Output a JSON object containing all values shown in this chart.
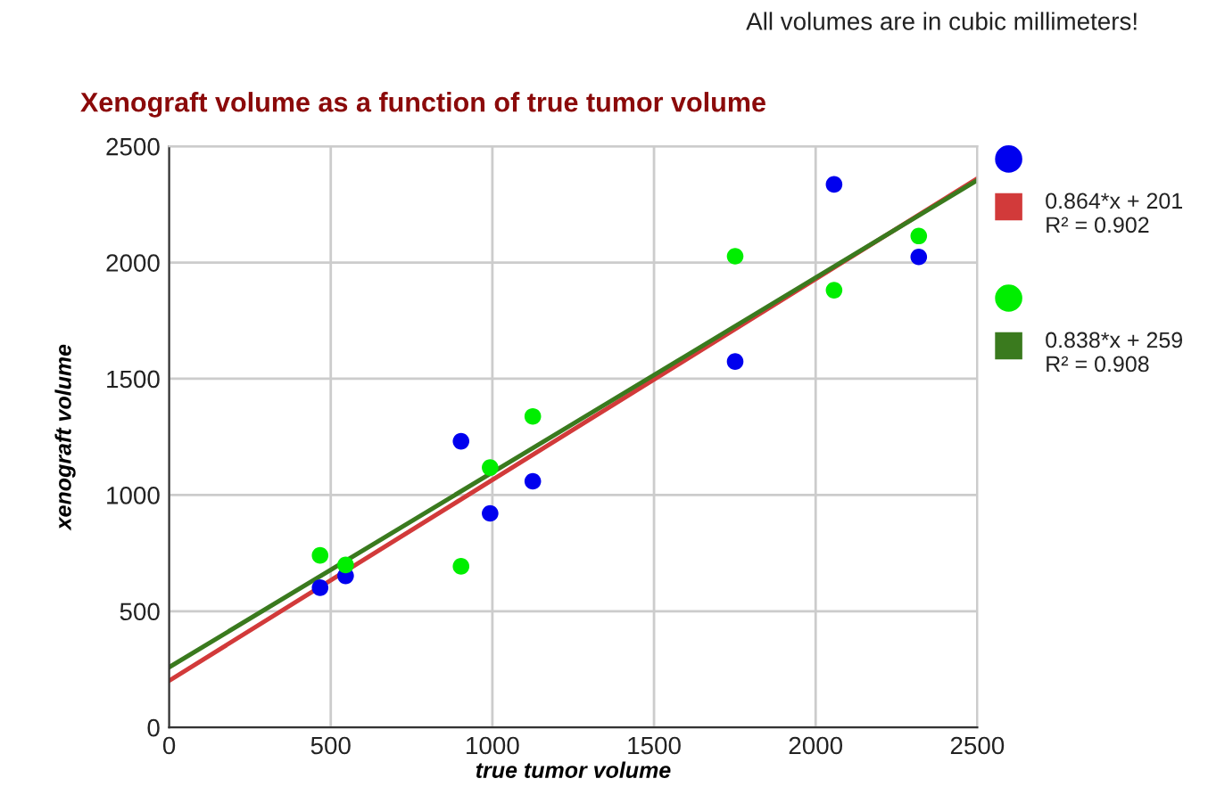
{
  "chart_data": {
    "type": "scatter",
    "title": "Xenograft volume as a function of true tumor volume",
    "xlabel": "true tumor volume",
    "ylabel": "xenograft volume",
    "annotations": [
      "All volumes are in cubic millimeters!"
    ],
    "xlim": [
      0,
      2500
    ],
    "xticks": [
      0,
      500,
      1000,
      1500,
      2000,
      2500
    ],
    "ylim": [
      0,
      2500
    ],
    "yticks": [
      0,
      500,
      1000,
      1500,
      2000,
      2500
    ],
    "grid": true,
    "legend": "right",
    "series": [
      {
        "marker": "circle",
        "color": "#0000ee",
        "x": [
          467,
          546,
          903,
          993,
          1125,
          1751,
          2057,
          2319
        ],
        "values": [
          601,
          652,
          1231,
          921,
          1059,
          1574,
          2336,
          2024
        ]
      },
      {
        "type": "line",
        "name": "0.864*x + 201 R² = 0.902",
        "color": "#d23a3a",
        "marker": "none",
        "x": [
          0,
          2500
        ],
        "values": [
          201,
          2361
        ]
      },
      {
        "marker": "circle",
        "color": "#00ee00",
        "x": [
          467,
          546,
          903,
          993,
          1125,
          1751,
          2057,
          2319
        ],
        "values": [
          740,
          699,
          693,
          1118,
          1338,
          2027,
          1881,
          2114
        ]
      },
      {
        "type": "line",
        "name": "0.838*x + 259 R² = 0.908",
        "color": "#3a7a1e",
        "marker": "none",
        "x": [
          0,
          2500
        ],
        "values": [
          259,
          2354
        ]
      }
    ]
  }
}
